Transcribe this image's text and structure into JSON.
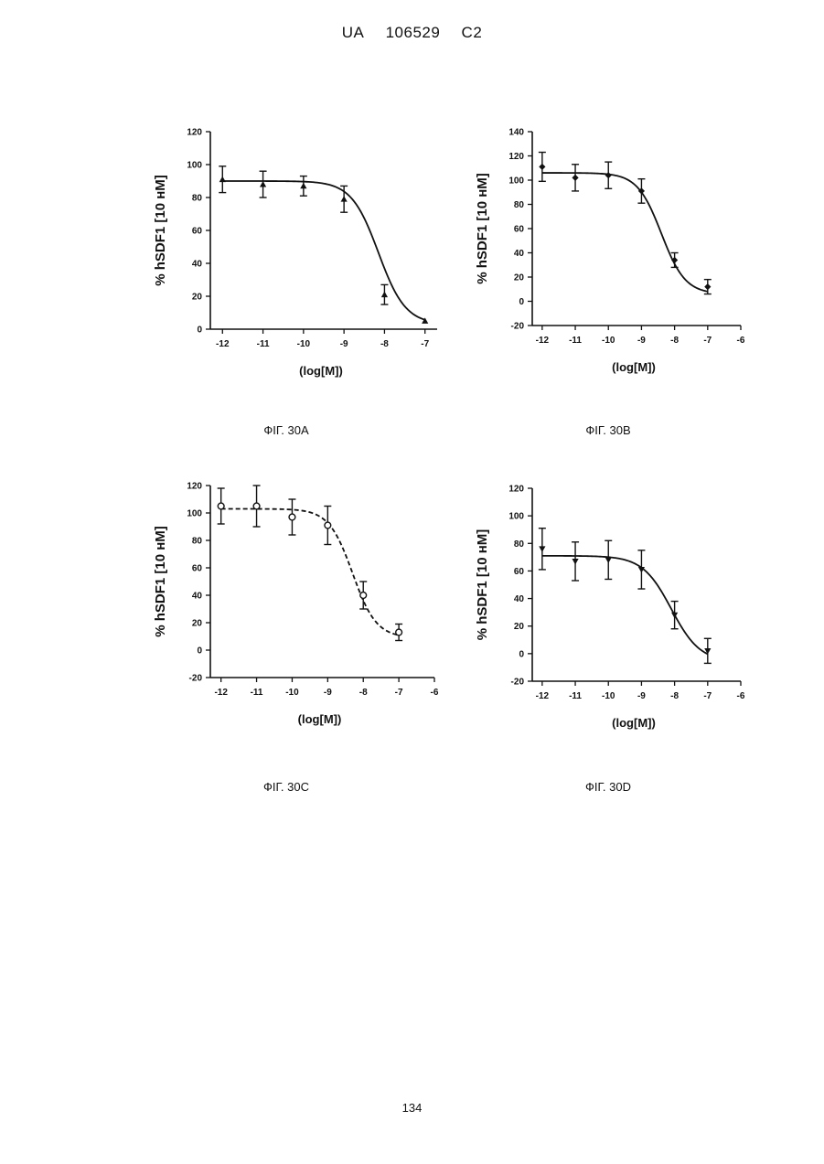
{
  "header": {
    "country": "UA",
    "number": "106529",
    "kind": "C2"
  },
  "page_number": "134",
  "captions": [
    "ФІГ. 30А",
    "ФІГ. 30В",
    "ФІГ. 30С",
    "ФІГ. 30D"
  ],
  "chart_data": [
    {
      "type": "scatter",
      "marker": "triangle-up",
      "curve": "solid",
      "xlabel": "(log[M])",
      "ylabel": "% hSDF1 [10 нМ]",
      "xlim": [
        -12.3,
        -6.7
      ],
      "ylim": [
        0,
        120
      ],
      "x_ticks": [
        -12,
        -11,
        -10,
        -9,
        -8,
        -7
      ],
      "y_ticks": [
        0,
        20,
        40,
        60,
        80,
        100,
        120
      ],
      "x": [
        -12,
        -11,
        -10,
        -9,
        -8,
        -7
      ],
      "y": [
        91,
        88,
        87,
        79,
        21,
        5
      ],
      "error": [
        8,
        8,
        6,
        8,
        6,
        0
      ],
      "fit": {
        "top": 90,
        "bottom": 3,
        "log_ic50": -8.15,
        "hill": 1.3
      }
    },
    {
      "type": "scatter",
      "marker": "diamond",
      "curve": "solid",
      "xlabel": "(log[M])",
      "ylabel": "% hSDF1 [10 нМ]",
      "xlim": [
        -12.3,
        -6
      ],
      "ylim": [
        -20,
        140
      ],
      "x_ticks": [
        -12,
        -11,
        -10,
        -9,
        -8,
        -7,
        -6
      ],
      "y_ticks": [
        -20,
        0,
        20,
        40,
        60,
        80,
        100,
        120,
        140
      ],
      "x": [
        -12,
        -11,
        -10,
        -9,
        -8,
        -7
      ],
      "y": [
        111,
        102,
        104,
        91,
        34,
        12
      ],
      "error": [
        12,
        11,
        11,
        10,
        6,
        6
      ],
      "fit": {
        "top": 106,
        "bottom": 6,
        "log_ic50": -8.4,
        "hill": 1.2
      }
    },
    {
      "type": "scatter",
      "marker": "circle-open",
      "curve": "dashed",
      "xlabel": "(log[M])",
      "ylabel": "% hSDF1 [10 нМ]",
      "xlim": [
        -12.3,
        -6
      ],
      "ylim": [
        -20,
        120
      ],
      "x_ticks": [
        -12,
        -11,
        -10,
        -9,
        -8,
        -7,
        -6
      ],
      "y_ticks": [
        -20,
        0,
        20,
        40,
        60,
        80,
        100,
        120
      ],
      "x": [
        -12,
        -11,
        -10,
        -9,
        -8,
        -7
      ],
      "y": [
        105,
        105,
        97,
        91,
        40,
        13
      ],
      "error": [
        13,
        15,
        13,
        14,
        10,
        6
      ],
      "fit": {
        "top": 103,
        "bottom": 9,
        "log_ic50": -8.3,
        "hill": 1.3
      }
    },
    {
      "type": "scatter",
      "marker": "triangle-down",
      "curve": "solid",
      "xlabel": "(log[M])",
      "ylabel": "% hSDF1 [10 нМ]",
      "xlim": [
        -12.3,
        -6
      ],
      "ylim": [
        -20,
        120
      ],
      "x_ticks": [
        -12,
        -11,
        -10,
        -9,
        -8,
        -7,
        -6
      ],
      "y_ticks": [
        -20,
        0,
        20,
        40,
        60,
        80,
        100,
        120
      ],
      "x": [
        -12,
        -11,
        -10,
        -9,
        -8,
        -7
      ],
      "y": [
        76,
        67,
        68,
        61,
        28,
        2
      ],
      "error": [
        15,
        14,
        14,
        14,
        10,
        9
      ],
      "fit": {
        "top": 71,
        "bottom": -6,
        "log_ic50": -8.1,
        "hill": 1.0
      }
    }
  ]
}
